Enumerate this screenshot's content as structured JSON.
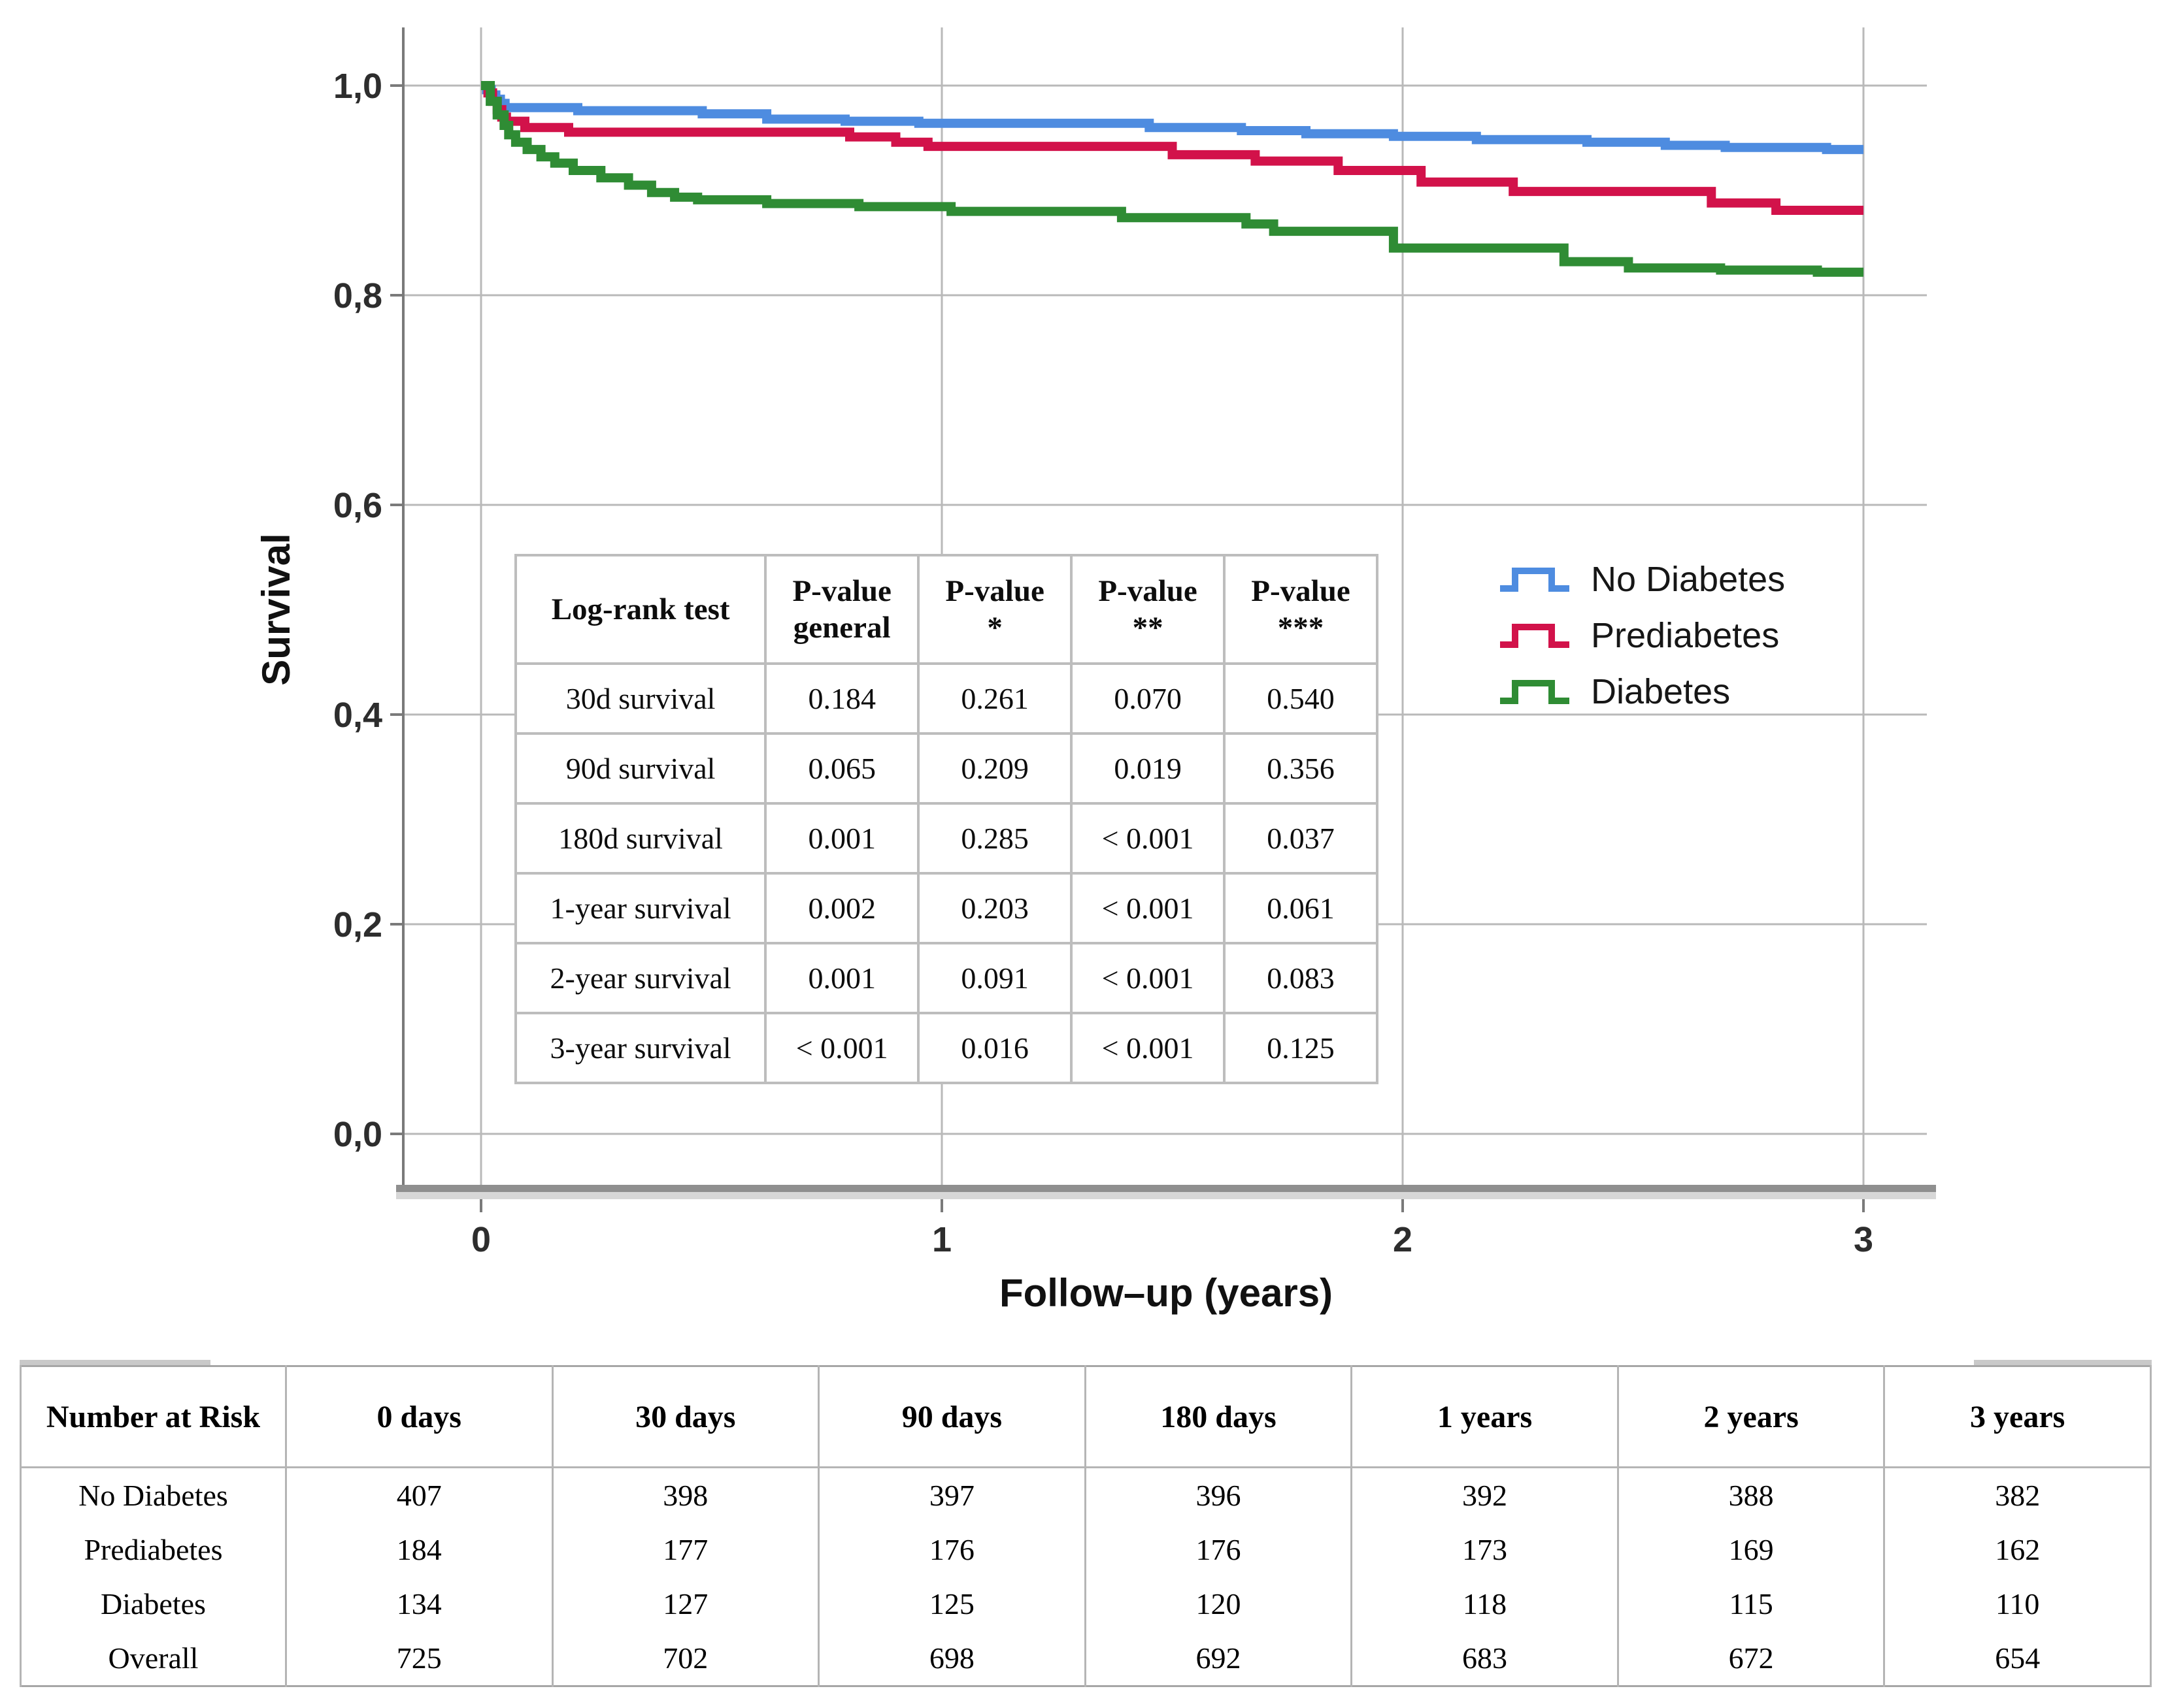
{
  "figure": {
    "y_axis_title": "Survival",
    "x_axis_title": "Follow–up (years)",
    "y_ticks": [
      {
        "label": "1,0",
        "value": 1.0
      },
      {
        "label": "0,8",
        "value": 0.8
      },
      {
        "label": "0,6",
        "value": 0.6
      },
      {
        "label": "0,4",
        "value": 0.4
      },
      {
        "label": "0,2",
        "value": 0.2
      },
      {
        "label": "0,0",
        "value": 0.0
      }
    ],
    "x_ticks": [
      {
        "label": "0",
        "value": 0
      },
      {
        "label": "1",
        "value": 1
      },
      {
        "label": "2",
        "value": 2
      },
      {
        "label": "3",
        "value": 3
      }
    ],
    "legend": [
      {
        "label": "No Diabetes",
        "color": "#4E8CE0"
      },
      {
        "label": "Prediabetes",
        "color": "#D2124A"
      },
      {
        "label": "Diabetes",
        "color": "#2F8C34"
      }
    ],
    "colors": {
      "gridline": "#b9b9b9",
      "axis_line": "#7a7a7a",
      "axis_bar": "#8f8f8f",
      "axis_bar_shadow": "#d7d7d7"
    }
  },
  "chart_data": {
    "type": "line",
    "subtype": "kaplan-meier-step",
    "title": "",
    "xlabel": "Follow–up (years)",
    "ylabel": "Survival",
    "xlim": [
      0,
      3
    ],
    "ylim": [
      0.0,
      1.05
    ],
    "x_ticks": [
      0,
      1,
      2,
      3
    ],
    "y_ticks": [
      0.0,
      0.2,
      0.4,
      0.6,
      0.8,
      1.0
    ],
    "grid": true,
    "legend_position": "inside-right",
    "series": [
      {
        "name": "No Diabetes",
        "color": "#4E8CE0",
        "points": [
          [
            0,
            1.0
          ],
          [
            0.012,
            0.996
          ],
          [
            0.022,
            0.991
          ],
          [
            0.032,
            0.987
          ],
          [
            0.042,
            0.983
          ],
          [
            0.052,
            0.979
          ],
          [
            0.21,
            0.976
          ],
          [
            0.48,
            0.973
          ],
          [
            0.62,
            0.968
          ],
          [
            0.79,
            0.966
          ],
          [
            0.95,
            0.964
          ],
          [
            1.45,
            0.96
          ],
          [
            1.65,
            0.957
          ],
          [
            1.79,
            0.954
          ],
          [
            1.98,
            0.9515
          ],
          [
            2.16,
            0.9485
          ],
          [
            2.4,
            0.946
          ],
          [
            2.57,
            0.943
          ],
          [
            2.7,
            0.941
          ],
          [
            2.92,
            0.939
          ]
        ]
      },
      {
        "name": "Prediabetes",
        "color": "#D2124A",
        "points": [
          [
            0,
            1.0
          ],
          [
            0.015,
            0.993
          ],
          [
            0.025,
            0.985
          ],
          [
            0.035,
            0.977
          ],
          [
            0.045,
            0.97
          ],
          [
            0.055,
            0.966
          ],
          [
            0.095,
            0.96
          ],
          [
            0.19,
            0.9555
          ],
          [
            0.8,
            0.951
          ],
          [
            0.9,
            0.946
          ],
          [
            0.97,
            0.942
          ],
          [
            1.5,
            0.934
          ],
          [
            1.68,
            0.928
          ],
          [
            1.86,
            0.919
          ],
          [
            2.04,
            0.908
          ],
          [
            2.24,
            0.899
          ],
          [
            2.67,
            0.888
          ],
          [
            2.81,
            0.881
          ]
        ]
      },
      {
        "name": "Diabetes",
        "color": "#2F8C34",
        "points": [
          [
            0,
            1.0
          ],
          [
            0.02,
            0.985
          ],
          [
            0.035,
            0.972
          ],
          [
            0.05,
            0.962
          ],
          [
            0.06,
            0.953
          ],
          [
            0.075,
            0.946
          ],
          [
            0.1,
            0.939
          ],
          [
            0.13,
            0.932
          ],
          [
            0.16,
            0.926
          ],
          [
            0.2,
            0.919
          ],
          [
            0.26,
            0.912
          ],
          [
            0.32,
            0.905
          ],
          [
            0.37,
            0.898
          ],
          [
            0.42,
            0.8935
          ],
          [
            0.47,
            0.891
          ],
          [
            0.62,
            0.8875
          ],
          [
            0.82,
            0.8845
          ],
          [
            1.02,
            0.88
          ],
          [
            1.39,
            0.874
          ],
          [
            1.66,
            0.868
          ],
          [
            1.72,
            0.861
          ],
          [
            1.98,
            0.845
          ],
          [
            2.35,
            0.832
          ],
          [
            2.49,
            0.826
          ],
          [
            2.69,
            0.824
          ],
          [
            2.9,
            0.822
          ]
        ]
      }
    ]
  },
  "logrank_table": {
    "headers": [
      {
        "line1": "Log-rank test",
        "line2": ""
      },
      {
        "line1": "P-value",
        "line2": "general"
      },
      {
        "line1": "P-value",
        "line2": "*"
      },
      {
        "line1": "P-value",
        "line2": "**"
      },
      {
        "line1": "P-value",
        "line2": "***"
      }
    ],
    "rows": [
      [
        "30d survival",
        "0.184",
        "0.261",
        "0.070",
        "0.540"
      ],
      [
        "90d survival",
        "0.065",
        "0.209",
        "0.019",
        "0.356"
      ],
      [
        "180d survival",
        "0.001",
        "0.285",
        "< 0.001",
        "0.037"
      ],
      [
        "1-year survival",
        "0.002",
        "0.203",
        "< 0.001",
        "0.061"
      ],
      [
        "2-year survival",
        "0.001",
        "0.091",
        "< 0.001",
        "0.083"
      ],
      [
        "3-year survival",
        "< 0.001",
        "0.016",
        "< 0.001",
        "0.125"
      ]
    ]
  },
  "risk_table": {
    "headers": [
      "Number at Risk",
      "0 days",
      "30 days",
      "90 days",
      "180 days",
      "1 years",
      "2 years",
      "3 years"
    ],
    "rows": [
      [
        "No Diabetes",
        "407",
        "398",
        "397",
        "396",
        "392",
        "388",
        "382"
      ],
      [
        "Prediabetes",
        "184",
        "177",
        "176",
        "176",
        "173",
        "169",
        "162"
      ],
      [
        "Diabetes",
        "134",
        "127",
        "125",
        "120",
        "118",
        "115",
        "110"
      ],
      [
        "Overall",
        "725",
        "702",
        "698",
        "692",
        "683",
        "672",
        "654"
      ]
    ]
  }
}
